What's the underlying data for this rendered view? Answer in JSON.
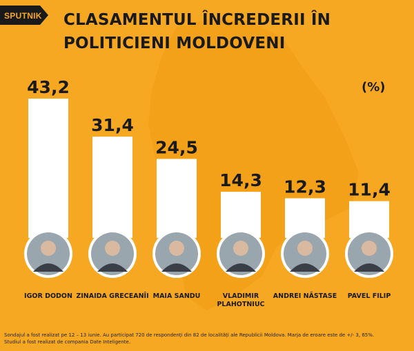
{
  "brand": {
    "logo_text": "SPUTNIK"
  },
  "title": {
    "line1": "CLASAMENTUL ÎNCREDERII ÎN",
    "line2": "POLITICIENI MOLDOVENI"
  },
  "unit_label": "(%)",
  "colors": {
    "background": "#F7A823",
    "bar": "#FFFFFF",
    "text": "#1A1A1A",
    "logo_bg": "#1A1A1A"
  },
  "chart_data": {
    "type": "bar",
    "categories": [
      "IGOR DODON",
      "ZINAIDA GRECEANÎI",
      "MAIA SANDU",
      "VLADIMIR\nPLAHOTNIUC",
      "ANDREI NĂSTASE",
      "PAVEL FILIP"
    ],
    "values": [
      43.2,
      31.4,
      24.5,
      14.3,
      12.3,
      11.4
    ],
    "value_labels": [
      "43,2",
      "31,4",
      "24,5",
      "14,3",
      "12,3",
      "11,4"
    ],
    "ylim": [
      0,
      45
    ],
    "grid": false,
    "legend": "none",
    "bar_icons": [
      "portrait-icon",
      "portrait-icon",
      "portrait-icon",
      "portrait-icon",
      "portrait-icon",
      "portrait-icon"
    ]
  },
  "footnote": {
    "line1": "Sondajul a fost realizat pe 12 – 13 iunie. Au participat 720 de respondenți din 82 de localități ale Republicii Moldova. Marja de eroare este de +/- 3, 65%.",
    "line2": "Studiul a fost realizat de compania Date Inteligente."
  }
}
